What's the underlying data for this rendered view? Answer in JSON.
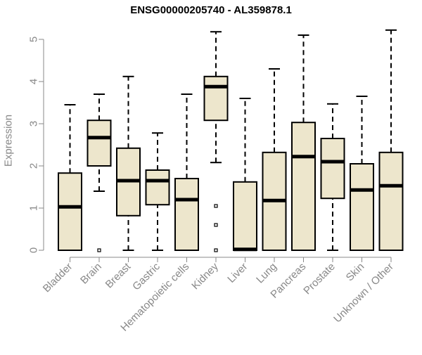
{
  "chart_data": {
    "type": "boxplot",
    "title": "ENSG00000205740 - AL359878.1",
    "ylabel": "Expression",
    "xlabel": "",
    "ylim": [
      0,
      5.2
    ],
    "yticks": [
      0,
      1,
      2,
      3,
      4,
      5
    ],
    "grid": false,
    "legend": "none",
    "colors": {
      "box_fill": "#ede6cc",
      "box_stroke": "#000000",
      "axis": "#888888",
      "label": "#888888"
    },
    "categories": [
      "Bladder",
      "Brain",
      "Breast",
      "Gastric",
      "Hematopoietic cells",
      "Kidney",
      "Liver",
      "Lung",
      "Pancreas",
      "Prostate",
      "Skin",
      "Unknown / Other"
    ],
    "boxes": [
      {
        "label": "Bladder",
        "whisker_low": 0,
        "q1": 0,
        "median": 1.03,
        "q3": 1.83,
        "whisker_high": 3.45,
        "outliers": []
      },
      {
        "label": "Brain",
        "whisker_low": 1.4,
        "q1": 2.0,
        "median": 2.67,
        "q3": 3.08,
        "whisker_high": 3.7,
        "outliers": [
          0
        ]
      },
      {
        "label": "Breast",
        "whisker_low": 0,
        "q1": 0.82,
        "median": 1.65,
        "q3": 2.42,
        "whisker_high": 4.12,
        "outliers": []
      },
      {
        "label": "Gastric",
        "whisker_low": 0,
        "q1": 1.08,
        "median": 1.65,
        "q3": 1.9,
        "whisker_high": 2.78,
        "outliers": []
      },
      {
        "label": "Hematopoietic cells",
        "whisker_low": 0,
        "q1": 0,
        "median": 1.2,
        "q3": 1.7,
        "whisker_high": 3.7,
        "outliers": []
      },
      {
        "label": "Kidney",
        "whisker_low": 2.08,
        "q1": 3.08,
        "median": 3.88,
        "q3": 4.12,
        "whisker_high": 5.18,
        "outliers": [
          1.05,
          0.6,
          0
        ]
      },
      {
        "label": "Liver",
        "whisker_low": 0,
        "q1": 0,
        "median": 0.02,
        "q3": 1.62,
        "whisker_high": 3.6,
        "outliers": []
      },
      {
        "label": "Lung",
        "whisker_low": 0,
        "q1": 0,
        "median": 1.18,
        "q3": 2.32,
        "whisker_high": 4.3,
        "outliers": []
      },
      {
        "label": "Pancreas",
        "whisker_low": 0,
        "q1": 0,
        "median": 2.22,
        "q3": 3.03,
        "whisker_high": 5.1,
        "outliers": []
      },
      {
        "label": "Prostate",
        "whisker_low": 0,
        "q1": 1.23,
        "median": 2.1,
        "q3": 2.65,
        "whisker_high": 3.47,
        "outliers": []
      },
      {
        "label": "Skin",
        "whisker_low": 0,
        "q1": 0,
        "median": 1.43,
        "q3": 2.05,
        "whisker_high": 3.65,
        "outliers": []
      },
      {
        "label": "Unknown / Other",
        "whisker_low": 0,
        "q1": 0,
        "median": 1.53,
        "q3": 2.32,
        "whisker_high": 5.22,
        "outliers": []
      }
    ]
  }
}
